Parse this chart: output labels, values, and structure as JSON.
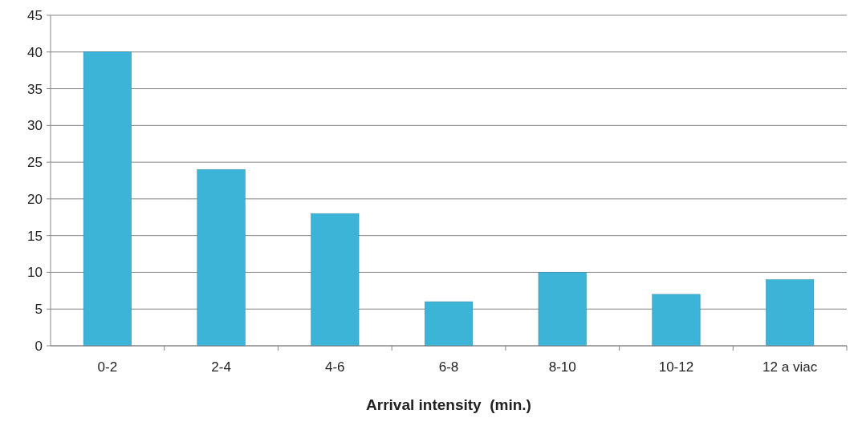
{
  "chart_data": {
    "type": "bar",
    "xlabel": "Arrival intensity  (min.)",
    "categories": [
      "0-2",
      "2-4",
      "4-6",
      "6-8",
      "8-10",
      "10-12",
      "12 a viac"
    ],
    "values": [
      40,
      24,
      18,
      6,
      10,
      7,
      9
    ],
    "color": "#3bb4d8",
    "ylim": [
      0,
      45
    ],
    "yticks": [
      0,
      5,
      10,
      15,
      20,
      25,
      30,
      35,
      40,
      45
    ],
    "grid": "y"
  }
}
